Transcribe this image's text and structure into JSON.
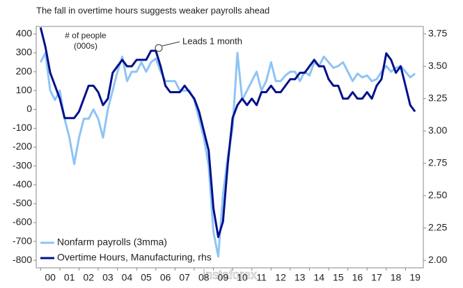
{
  "chart_data": {
    "type": "line",
    "title": "The fall in overtime hours suggests weaker payrolls ahead",
    "y_label": "# of people (000s)",
    "annotation": "Leads 1 month",
    "watermark": "instaforex",
    "x": [
      2000,
      2000.25,
      2000.5,
      2000.75,
      2001,
      2001.25,
      2001.5,
      2001.75,
      2002,
      2002.25,
      2002.5,
      2002.75,
      2003,
      2003.25,
      2003.5,
      2003.75,
      2004,
      2004.25,
      2004.5,
      2004.75,
      2005,
      2005.25,
      2005.5,
      2005.75,
      2006,
      2006.25,
      2006.5,
      2006.75,
      2007,
      2007.25,
      2007.5,
      2007.75,
      2008,
      2008.25,
      2008.5,
      2008.75,
      2009,
      2009.25,
      2009.5,
      2009.75,
      2010,
      2010.25,
      2010.5,
      2010.75,
      2011,
      2011.25,
      2011.5,
      2011.75,
      2012,
      2012.25,
      2012.5,
      2012.75,
      2013,
      2013.25,
      2013.5,
      2013.75,
      2014,
      2014.25,
      2014.5,
      2014.75,
      2015,
      2015.25,
      2015.5,
      2015.75,
      2016,
      2016.25,
      2016.5,
      2016.75,
      2017,
      2017.25,
      2017.5,
      2017.75,
      2018,
      2018.25,
      2018.5,
      2018.75,
      2019,
      2019.25,
      2019.5
    ],
    "series": [
      {
        "name": "Nonfarm payrolls (3mma)",
        "color": "#8ec4f5",
        "axis": "y",
        "values": [
          250,
          300,
          100,
          50,
          100,
          -50,
          -150,
          -290,
          -150,
          -50,
          -50,
          0,
          -50,
          -150,
          0,
          100,
          200,
          280,
          150,
          200,
          200,
          250,
          200,
          250,
          270,
          200,
          150,
          150,
          150,
          100,
          100,
          100,
          50,
          -50,
          -150,
          -300,
          -650,
          -780,
          -450,
          -250,
          -100,
          300,
          50,
          100,
          150,
          200,
          100,
          150,
          250,
          150,
          150,
          180,
          200,
          200,
          150,
          200,
          180,
          250,
          230,
          280,
          250,
          220,
          230,
          250,
          200,
          150,
          190,
          170,
          180,
          150,
          160,
          200,
          230,
          200,
          220,
          230,
          200,
          170,
          190
        ]
      },
      {
        "name": "Overtime Hours, Manufacturing, rhs",
        "color": "#00108c",
        "axis": "y2",
        "values": [
          3.8,
          3.65,
          3.45,
          3.35,
          3.25,
          3.1,
          3.1,
          3.1,
          3.15,
          3.25,
          3.35,
          3.35,
          3.3,
          3.2,
          3.25,
          3.45,
          3.5,
          3.55,
          3.5,
          3.5,
          3.55,
          3.55,
          3.55,
          3.62,
          3.62,
          3.5,
          3.35,
          3.3,
          3.3,
          3.3,
          3.35,
          3.3,
          3.25,
          3.15,
          3.0,
          2.85,
          2.4,
          2.18,
          2.3,
          2.75,
          3.1,
          3.2,
          3.25,
          3.2,
          3.25,
          3.2,
          3.3,
          3.3,
          3.35,
          3.3,
          3.3,
          3.35,
          3.4,
          3.4,
          3.45,
          3.45,
          3.5,
          3.55,
          3.5,
          3.5,
          3.4,
          3.35,
          3.35,
          3.25,
          3.25,
          3.3,
          3.25,
          3.25,
          3.3,
          3.25,
          3.35,
          3.4,
          3.6,
          3.55,
          3.45,
          3.5,
          3.35,
          3.2,
          3.15
        ]
      }
    ],
    "xlim": [
      1999.77,
      2019.93
    ],
    "xticks": [
      {
        "value": 2000,
        "label": "00"
      },
      {
        "value": 2001,
        "label": "01"
      },
      {
        "value": 2002,
        "label": "02"
      },
      {
        "value": 2003,
        "label": "03"
      },
      {
        "value": 2004,
        "label": "04"
      },
      {
        "value": 2005,
        "label": "05"
      },
      {
        "value": 2006,
        "label": "06"
      },
      {
        "value": 2007,
        "label": "07"
      },
      {
        "value": 2008,
        "label": "08"
      },
      {
        "value": 2009,
        "label": "09"
      },
      {
        "value": 2010,
        "label": "10"
      },
      {
        "value": 2011,
        "label": "11"
      },
      {
        "value": 2012,
        "label": "12"
      },
      {
        "value": 2013,
        "label": "13"
      },
      {
        "value": 2014,
        "label": "14"
      },
      {
        "value": 2015,
        "label": "15"
      },
      {
        "value": 2016,
        "label": "16"
      },
      {
        "value": 2017,
        "label": "17"
      },
      {
        "value": 2018,
        "label": "18"
      },
      {
        "value": 2019,
        "label": "19"
      }
    ],
    "ylim": [
      -840,
      440
    ],
    "yticks": [
      -800,
      -700,
      -600,
      -500,
      -400,
      -300,
      -200,
      -100,
      0,
      100,
      200,
      300,
      400
    ],
    "y2lim": [
      1.942,
      3.808
    ],
    "y2ticks": [
      {
        "value": 2,
        "label": "2.00"
      },
      {
        "value": 2.25,
        "label": "2.25"
      },
      {
        "value": 2.5,
        "label": "2.50"
      },
      {
        "value": 2.75,
        "label": "2.75"
      },
      {
        "value": 3,
        "label": "3.00"
      },
      {
        "value": 3.25,
        "label": "3.25"
      },
      {
        "value": 3.5,
        "label": "3.50"
      },
      {
        "value": 3.75,
        "label": "3.75"
      }
    ]
  }
}
